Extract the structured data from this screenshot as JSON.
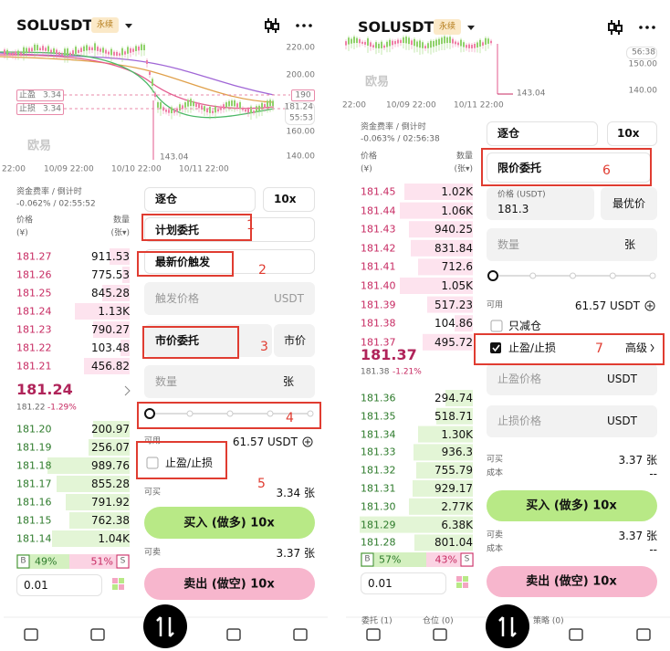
{
  "screens": [
    {
      "header": {
        "symbol": "SOLUSDT",
        "badge": "永续"
      },
      "chart": {
        "price_labels": [
          "220.00",
          "200.00",
          "160.00",
          "140.00"
        ],
        "alert": "190",
        "last_price": "181.24",
        "countdown": "55:53",
        "tp_label": "止盈",
        "tp_value": "3.34",
        "sl_label": "止损",
        "sl_value": "3.34",
        "low": "143.04",
        "watermark": "欧易",
        "time_labels": [
          "22:00",
          "10/09 22:00",
          "10/10 22:00",
          "10/11 22:00"
        ]
      },
      "funding": {
        "label": "资金费率 / 倒计时",
        "value": "-0.062% / 02:55:52"
      },
      "book": {
        "price_header": "价格",
        "price_unit": "(¥)",
        "qty_header": "数量",
        "qty_unit": "(张▾)",
        "asks": [
          [
            "181.27",
            "911.53"
          ],
          [
            "181.26",
            "775.53"
          ],
          [
            "181.25",
            "845.28"
          ],
          [
            "181.24",
            "1.13K"
          ],
          [
            "181.23",
            "790.27"
          ],
          [
            "181.22",
            "103.48"
          ],
          [
            "181.21",
            "456.82"
          ]
        ],
        "mid_price": "181.24",
        "mark_price": "181.22",
        "change": "-1.29%",
        "bids": [
          [
            "181.20",
            "200.97"
          ],
          [
            "181.19",
            "256.07"
          ],
          [
            "181.18",
            "989.76"
          ],
          [
            "181.17",
            "855.28"
          ],
          [
            "181.16",
            "791.92"
          ],
          [
            "181.15",
            "762.38"
          ],
          [
            "181.14",
            "1.04K"
          ]
        ],
        "buy_label": "B",
        "buy_ratio": "49%",
        "sell_ratio": "51%",
        "sell_label": "S",
        "precision": "0.01"
      },
      "form": {
        "margin_mode": "逐仓",
        "leverage": "10x",
        "order_type": "计划委托",
        "trigger_type": "最新价触发",
        "trigger_price": "触发价格",
        "trigger_unit": "USDT",
        "exec_type": "市价委托",
        "exec_price": "市价",
        "qty": "数量",
        "qty_unit": "张",
        "available_label": "可用",
        "available_value": "61.57 USDT",
        "tpsl": "止盈/止损",
        "can_buy_label": "可买",
        "can_buy_value": "3.34 张",
        "buy_button": "买入 (做多) 10x",
        "can_sell_label": "可卖",
        "can_sell_value": "3.37 张",
        "sell_button": "卖出 (做空) 10x"
      },
      "annotations": [
        "1",
        "2",
        "3",
        "4",
        "5"
      ]
    },
    {
      "header": {
        "symbol": "SOLUSDT",
        "badge": "永续"
      },
      "chart": {
        "price_labels": [
          "150.00",
          "140.00"
        ],
        "countdown": "56:38",
        "low": "143.04",
        "watermark": "欧易",
        "time_labels": [
          "22:00",
          "10/09 22:00",
          "10/11 22:00"
        ]
      },
      "funding": {
        "label": "资金费率 / 倒计时",
        "value": "-0.063% / 02:56:38"
      },
      "book": {
        "price_header": "价格",
        "price_unit": "(¥)",
        "qty_header": "数量",
        "qty_unit": "(张▾)",
        "asks": [
          [
            "181.45",
            "1.02K"
          ],
          [
            "181.44",
            "1.06K"
          ],
          [
            "181.43",
            "940.25"
          ],
          [
            "181.42",
            "831.84"
          ],
          [
            "181.41",
            "712.6"
          ],
          [
            "181.40",
            "1.05K"
          ],
          [
            "181.39",
            "517.23"
          ],
          [
            "181.38",
            "104.86"
          ],
          [
            "181.37",
            "495.72"
          ]
        ],
        "mid_price": "181.37",
        "mark_price": "181.38",
        "change": "-1.21%",
        "bids": [
          [
            "181.36",
            "294.74"
          ],
          [
            "181.35",
            "518.71"
          ],
          [
            "181.34",
            "1.30K"
          ],
          [
            "181.33",
            "936.3"
          ],
          [
            "181.32",
            "755.79"
          ],
          [
            "181.31",
            "929.17"
          ],
          [
            "181.30",
            "2.77K"
          ],
          [
            "181.29",
            "6.38K"
          ],
          [
            "181.28",
            "801.04"
          ]
        ],
        "buy_label": "B",
        "buy_ratio": "57%",
        "sell_ratio": "43%",
        "sell_label": "S",
        "precision": "0.01"
      },
      "form": {
        "margin_mode": "逐仓",
        "leverage": "10x",
        "order_type": "限价委托",
        "price_label": "价格 (USDT)",
        "price_value": "181.3",
        "best_price": "最优价",
        "qty": "数量",
        "qty_unit": "张",
        "available_label": "可用",
        "available_value": "61.57 USDT",
        "reduce_only": "只减仓",
        "tpsl": "止盈/止损",
        "advanced": "高级",
        "tp_price": "止盈价格",
        "tp_unit": "USDT",
        "sl_price": "止损价格",
        "sl_unit": "USDT",
        "can_buy_label": "可买",
        "can_buy_value": "3.37 张",
        "buy_cost_label": "成本",
        "buy_cost_value": "--",
        "buy_button": "买入 (做多) 10x",
        "can_sell_label": "可卖",
        "can_sell_value": "3.37 张",
        "sell_cost_label": "成本",
        "sell_cost_value": "--",
        "sell_button": "卖出 (做空) 10x"
      },
      "tabs": [
        "委托 (1)",
        "仓位 (0)",
        "策略 (0)"
      ],
      "annotations": [
        "6",
        "7"
      ]
    }
  ]
}
